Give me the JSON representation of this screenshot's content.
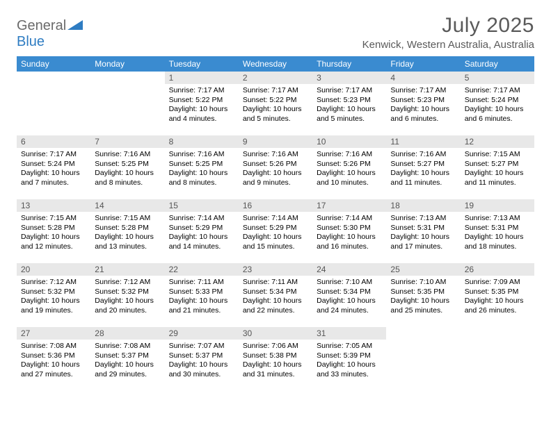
{
  "logo": {
    "general": "General",
    "blue": "Blue"
  },
  "title": "July 2025",
  "location": "Kenwick, Western Australia, Australia",
  "colors": {
    "header_bg": "#3a8bd0",
    "header_fg": "#ffffff",
    "daynum_bg": "#e8e8e8",
    "daynum_fg": "#555555",
    "title_fg": "#5a5a5a",
    "logo_general": "#6a6a6a",
    "logo_blue": "#2e7cc2"
  },
  "weekdays": [
    "Sunday",
    "Monday",
    "Tuesday",
    "Wednesday",
    "Thursday",
    "Friday",
    "Saturday"
  ],
  "type": "calendar",
  "columns": 7,
  "rows": 5,
  "cells": [
    {
      "day": "",
      "sunrise": "",
      "sunset": "",
      "daylight1": "",
      "daylight2": ""
    },
    {
      "day": "",
      "sunrise": "",
      "sunset": "",
      "daylight1": "",
      "daylight2": ""
    },
    {
      "day": "1",
      "sunrise": "Sunrise: 7:17 AM",
      "sunset": "Sunset: 5:22 PM",
      "daylight1": "Daylight: 10 hours",
      "daylight2": "and 4 minutes."
    },
    {
      "day": "2",
      "sunrise": "Sunrise: 7:17 AM",
      "sunset": "Sunset: 5:22 PM",
      "daylight1": "Daylight: 10 hours",
      "daylight2": "and 5 minutes."
    },
    {
      "day": "3",
      "sunrise": "Sunrise: 7:17 AM",
      "sunset": "Sunset: 5:23 PM",
      "daylight1": "Daylight: 10 hours",
      "daylight2": "and 5 minutes."
    },
    {
      "day": "4",
      "sunrise": "Sunrise: 7:17 AM",
      "sunset": "Sunset: 5:23 PM",
      "daylight1": "Daylight: 10 hours",
      "daylight2": "and 6 minutes."
    },
    {
      "day": "5",
      "sunrise": "Sunrise: 7:17 AM",
      "sunset": "Sunset: 5:24 PM",
      "daylight1": "Daylight: 10 hours",
      "daylight2": "and 6 minutes."
    },
    {
      "day": "6",
      "sunrise": "Sunrise: 7:17 AM",
      "sunset": "Sunset: 5:24 PM",
      "daylight1": "Daylight: 10 hours",
      "daylight2": "and 7 minutes."
    },
    {
      "day": "7",
      "sunrise": "Sunrise: 7:16 AM",
      "sunset": "Sunset: 5:25 PM",
      "daylight1": "Daylight: 10 hours",
      "daylight2": "and 8 minutes."
    },
    {
      "day": "8",
      "sunrise": "Sunrise: 7:16 AM",
      "sunset": "Sunset: 5:25 PM",
      "daylight1": "Daylight: 10 hours",
      "daylight2": "and 8 minutes."
    },
    {
      "day": "9",
      "sunrise": "Sunrise: 7:16 AM",
      "sunset": "Sunset: 5:26 PM",
      "daylight1": "Daylight: 10 hours",
      "daylight2": "and 9 minutes."
    },
    {
      "day": "10",
      "sunrise": "Sunrise: 7:16 AM",
      "sunset": "Sunset: 5:26 PM",
      "daylight1": "Daylight: 10 hours",
      "daylight2": "and 10 minutes."
    },
    {
      "day": "11",
      "sunrise": "Sunrise: 7:16 AM",
      "sunset": "Sunset: 5:27 PM",
      "daylight1": "Daylight: 10 hours",
      "daylight2": "and 11 minutes."
    },
    {
      "day": "12",
      "sunrise": "Sunrise: 7:15 AM",
      "sunset": "Sunset: 5:27 PM",
      "daylight1": "Daylight: 10 hours",
      "daylight2": "and 11 minutes."
    },
    {
      "day": "13",
      "sunrise": "Sunrise: 7:15 AM",
      "sunset": "Sunset: 5:28 PM",
      "daylight1": "Daylight: 10 hours",
      "daylight2": "and 12 minutes."
    },
    {
      "day": "14",
      "sunrise": "Sunrise: 7:15 AM",
      "sunset": "Sunset: 5:28 PM",
      "daylight1": "Daylight: 10 hours",
      "daylight2": "and 13 minutes."
    },
    {
      "day": "15",
      "sunrise": "Sunrise: 7:14 AM",
      "sunset": "Sunset: 5:29 PM",
      "daylight1": "Daylight: 10 hours",
      "daylight2": "and 14 minutes."
    },
    {
      "day": "16",
      "sunrise": "Sunrise: 7:14 AM",
      "sunset": "Sunset: 5:29 PM",
      "daylight1": "Daylight: 10 hours",
      "daylight2": "and 15 minutes."
    },
    {
      "day": "17",
      "sunrise": "Sunrise: 7:14 AM",
      "sunset": "Sunset: 5:30 PM",
      "daylight1": "Daylight: 10 hours",
      "daylight2": "and 16 minutes."
    },
    {
      "day": "18",
      "sunrise": "Sunrise: 7:13 AM",
      "sunset": "Sunset: 5:31 PM",
      "daylight1": "Daylight: 10 hours",
      "daylight2": "and 17 minutes."
    },
    {
      "day": "19",
      "sunrise": "Sunrise: 7:13 AM",
      "sunset": "Sunset: 5:31 PM",
      "daylight1": "Daylight: 10 hours",
      "daylight2": "and 18 minutes."
    },
    {
      "day": "20",
      "sunrise": "Sunrise: 7:12 AM",
      "sunset": "Sunset: 5:32 PM",
      "daylight1": "Daylight: 10 hours",
      "daylight2": "and 19 minutes."
    },
    {
      "day": "21",
      "sunrise": "Sunrise: 7:12 AM",
      "sunset": "Sunset: 5:32 PM",
      "daylight1": "Daylight: 10 hours",
      "daylight2": "and 20 minutes."
    },
    {
      "day": "22",
      "sunrise": "Sunrise: 7:11 AM",
      "sunset": "Sunset: 5:33 PM",
      "daylight1": "Daylight: 10 hours",
      "daylight2": "and 21 minutes."
    },
    {
      "day": "23",
      "sunrise": "Sunrise: 7:11 AM",
      "sunset": "Sunset: 5:34 PM",
      "daylight1": "Daylight: 10 hours",
      "daylight2": "and 22 minutes."
    },
    {
      "day": "24",
      "sunrise": "Sunrise: 7:10 AM",
      "sunset": "Sunset: 5:34 PM",
      "daylight1": "Daylight: 10 hours",
      "daylight2": "and 24 minutes."
    },
    {
      "day": "25",
      "sunrise": "Sunrise: 7:10 AM",
      "sunset": "Sunset: 5:35 PM",
      "daylight1": "Daylight: 10 hours",
      "daylight2": "and 25 minutes."
    },
    {
      "day": "26",
      "sunrise": "Sunrise: 7:09 AM",
      "sunset": "Sunset: 5:35 PM",
      "daylight1": "Daylight: 10 hours",
      "daylight2": "and 26 minutes."
    },
    {
      "day": "27",
      "sunrise": "Sunrise: 7:08 AM",
      "sunset": "Sunset: 5:36 PM",
      "daylight1": "Daylight: 10 hours",
      "daylight2": "and 27 minutes."
    },
    {
      "day": "28",
      "sunrise": "Sunrise: 7:08 AM",
      "sunset": "Sunset: 5:37 PM",
      "daylight1": "Daylight: 10 hours",
      "daylight2": "and 29 minutes."
    },
    {
      "day": "29",
      "sunrise": "Sunrise: 7:07 AM",
      "sunset": "Sunset: 5:37 PM",
      "daylight1": "Daylight: 10 hours",
      "daylight2": "and 30 minutes."
    },
    {
      "day": "30",
      "sunrise": "Sunrise: 7:06 AM",
      "sunset": "Sunset: 5:38 PM",
      "daylight1": "Daylight: 10 hours",
      "daylight2": "and 31 minutes."
    },
    {
      "day": "31",
      "sunrise": "Sunrise: 7:05 AM",
      "sunset": "Sunset: 5:39 PM",
      "daylight1": "Daylight: 10 hours",
      "daylight2": "and 33 minutes."
    },
    {
      "day": "",
      "sunrise": "",
      "sunset": "",
      "daylight1": "",
      "daylight2": ""
    },
    {
      "day": "",
      "sunrise": "",
      "sunset": "",
      "daylight1": "",
      "daylight2": ""
    }
  ]
}
